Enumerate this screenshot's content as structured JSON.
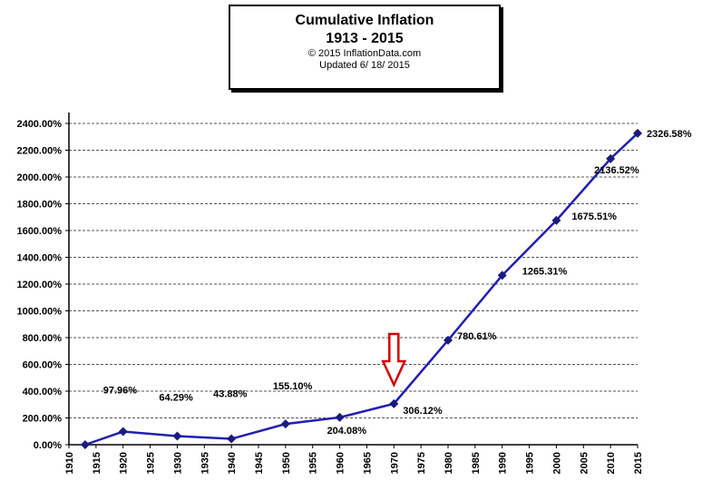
{
  "header": {
    "title": "Cumulative Inflation",
    "subtitle": "1913 - 2015",
    "copyright": "© 2015 InflationData.com",
    "updated": "Updated 6/ 18/ 2015"
  },
  "chart_data": {
    "type": "line",
    "series": [
      {
        "x": [
          1913,
          1920,
          1930,
          1940,
          1950,
          1960,
          1970,
          1980,
          1990,
          2000,
          2010,
          2015
        ],
        "values": [
          0,
          97.96,
          64.29,
          43.88,
          155.1,
          204.08,
          306.12,
          780.61,
          1265.31,
          1675.51,
          2136.52,
          2326.58
        ],
        "labels": [
          "",
          "97.96%",
          "64.29%",
          "43.88%",
          "155.10%",
          "204.08%",
          "306.12%",
          "780.61%",
          "1265.31%",
          "1675.51%",
          "2136.52%",
          "2326.58%"
        ]
      }
    ],
    "xlim": [
      1910,
      2015
    ],
    "ylim": [
      0,
      2400
    ],
    "xticks": [
      "1910",
      "1915",
      "1920",
      "1925",
      "1930",
      "1935",
      "1940",
      "1945",
      "1950",
      "1955",
      "1960",
      "1965",
      "1970",
      "1975",
      "1980",
      "1985",
      "1990",
      "1995",
      "2000",
      "2005",
      "2010",
      "2015"
    ],
    "yticks": [
      "0.00%",
      "200.00%",
      "400.00%",
      "600.00%",
      "800.00%",
      "1000.00%",
      "1200.00%",
      "1400.00%",
      "1600.00%",
      "1800.00%",
      "2000.00%",
      "2200.00%",
      "2400.00%"
    ],
    "grid": "horizontal dashed",
    "line_color": "#2020b0",
    "annotation": {
      "type": "red-arrow-down",
      "x": 1970,
      "color": "#d40000"
    }
  }
}
